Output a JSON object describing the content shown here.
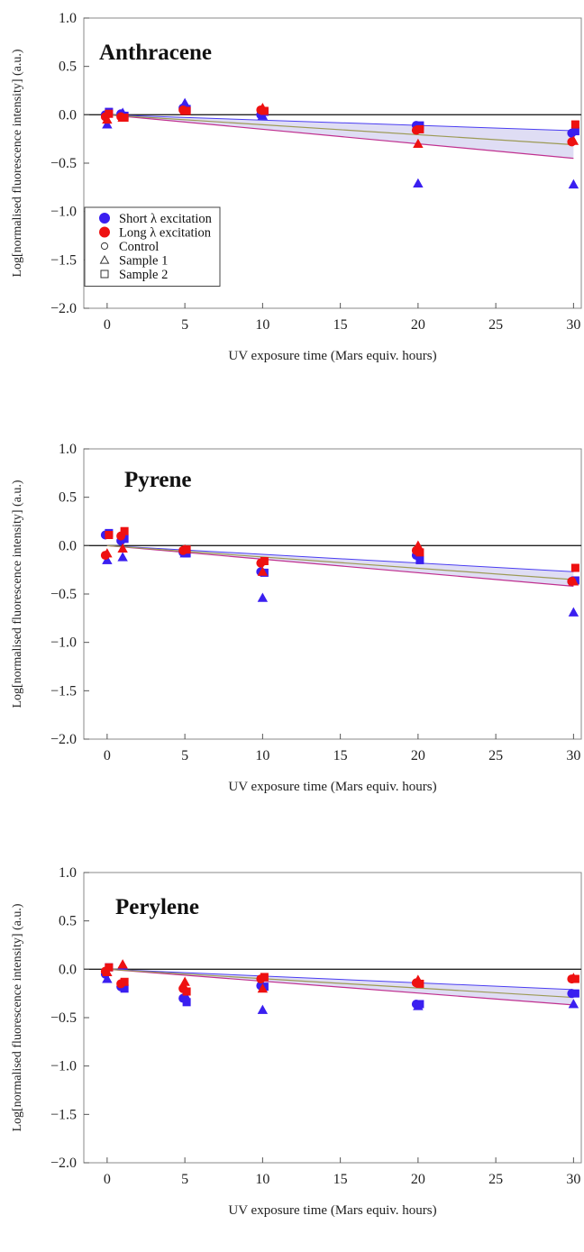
{
  "chart_data": [
    {
      "type": "scatter",
      "title": "Anthracene",
      "xlabel": "UV exposure time (Mars equiv. hours)",
      "ylabel": "Log[normalised fluorescence intensity] (a.u.)",
      "xlim": [
        -1.5,
        30.5
      ],
      "ylim": [
        -2.0,
        1.0
      ],
      "xticks": [
        0,
        5,
        10,
        15,
        20,
        25,
        30
      ],
      "yticks": [
        1.0,
        0.5,
        0.0,
        -0.5,
        -1.0,
        -1.5,
        -2.0
      ],
      "grid": false,
      "legend_position": "center-left",
      "legend": [
        {
          "label": "Short λ excitation",
          "symbol": "filled-circle",
          "color": "#3a1ff0"
        },
        {
          "label": "Long λ excitation",
          "symbol": "filled-circle",
          "color": "#ee1111"
        },
        {
          "label": "Control",
          "symbol": "open-circle",
          "color": "#333333"
        },
        {
          "label": "Sample 1",
          "symbol": "open-triangle",
          "color": "#333333"
        },
        {
          "label": "Sample 2",
          "symbol": "open-square",
          "color": "#333333"
        }
      ],
      "fit": {
        "slope": -0.0103,
        "band_upper": -0.0055,
        "band_lower": -0.015
      },
      "series": [
        {
          "excitation": "short",
          "sample": "control",
          "color": "#3a1ff0",
          "marker": "circle",
          "x": [
            0,
            1,
            5,
            10,
            20,
            30
          ],
          "y": [
            0.0,
            0.01,
            0.07,
            0.0,
            -0.11,
            -0.19
          ]
        },
        {
          "excitation": "short",
          "sample": "sample1",
          "color": "#3a1ff0",
          "marker": "triangle",
          "x": [
            0,
            1,
            5,
            10,
            20,
            30
          ],
          "y": [
            -0.1,
            0.02,
            0.12,
            -0.01,
            -0.71,
            -0.72
          ]
        },
        {
          "excitation": "short",
          "sample": "sample2",
          "color": "#3a1ff0",
          "marker": "square",
          "x": [
            0,
            1,
            5,
            10,
            20,
            30
          ],
          "y": [
            0.03,
            -0.01,
            0.06,
            0.03,
            -0.11,
            -0.17
          ]
        },
        {
          "excitation": "long",
          "sample": "control",
          "color": "#ee1111",
          "marker": "circle",
          "x": [
            0,
            1,
            5,
            10,
            20,
            30
          ],
          "y": [
            -0.02,
            -0.02,
            0.05,
            0.05,
            -0.16,
            -0.28
          ]
        },
        {
          "excitation": "long",
          "sample": "sample1",
          "color": "#ee1111",
          "marker": "triangle",
          "x": [
            0,
            1,
            5,
            10,
            20,
            30
          ],
          "y": [
            -0.05,
            -0.03,
            0.04,
            0.07,
            -0.3,
            -0.27
          ]
        },
        {
          "excitation": "long",
          "sample": "sample2",
          "color": "#ee1111",
          "marker": "square",
          "x": [
            0,
            1,
            5,
            10,
            20,
            30
          ],
          "y": [
            0.01,
            -0.03,
            0.04,
            0.04,
            -0.15,
            -0.1
          ]
        }
      ]
    },
    {
      "type": "scatter",
      "title": "Pyrene",
      "xlabel": "UV exposure time (Mars equiv. hours)",
      "ylabel": "Log[normalised fluorescence intensity] (a.u.)",
      "xlim": [
        -1.5,
        30.5
      ],
      "ylim": [
        -2.0,
        1.0
      ],
      "xticks": [
        0,
        5,
        10,
        15,
        20,
        25,
        30
      ],
      "yticks": [
        1.0,
        0.5,
        0.0,
        -0.5,
        -1.0,
        -1.5,
        -2.0
      ],
      "grid": false,
      "fit": {
        "slope": -0.0117,
        "band_upper": -0.009,
        "band_lower": -0.014
      },
      "series": [
        {
          "excitation": "short",
          "sample": "control",
          "color": "#3a1ff0",
          "marker": "circle",
          "x": [
            0,
            1,
            5,
            10,
            20,
            30
          ],
          "y": [
            0.11,
            0.05,
            -0.07,
            -0.27,
            -0.1,
            -0.37
          ]
        },
        {
          "excitation": "short",
          "sample": "sample1",
          "color": "#3a1ff0",
          "marker": "triangle",
          "x": [
            0,
            1,
            5,
            10,
            20,
            30
          ],
          "y": [
            -0.15,
            -0.12,
            -0.08,
            -0.54,
            -0.02,
            -0.69
          ]
        },
        {
          "excitation": "short",
          "sample": "sample2",
          "color": "#3a1ff0",
          "marker": "square",
          "x": [
            0,
            1,
            5,
            10,
            20,
            30
          ],
          "y": [
            0.13,
            0.07,
            -0.08,
            -0.28,
            -0.15,
            -0.36
          ]
        },
        {
          "excitation": "long",
          "sample": "control",
          "color": "#ee1111",
          "marker": "circle",
          "x": [
            0,
            1,
            5,
            10,
            20,
            30
          ],
          "y": [
            -0.1,
            0.1,
            -0.05,
            -0.18,
            -0.05,
            -0.37
          ]
        },
        {
          "excitation": "long",
          "sample": "sample1",
          "color": "#ee1111",
          "marker": "triangle",
          "x": [
            0,
            1,
            5,
            10,
            20,
            30
          ],
          "y": [
            -0.08,
            -0.03,
            -0.04,
            -0.27,
            0.0,
            -0.37
          ]
        },
        {
          "excitation": "long",
          "sample": "sample2",
          "color": "#ee1111",
          "marker": "square",
          "x": [
            0,
            1,
            5,
            10,
            20,
            30
          ],
          "y": [
            0.11,
            0.15,
            -0.04,
            -0.16,
            -0.07,
            -0.23
          ]
        }
      ]
    },
    {
      "type": "scatter",
      "title": "Perylene",
      "xlabel": "UV exposure time (Mars equiv. hours)",
      "ylabel": "Log[normalised fluorescence intensity] (a.u.)",
      "xlim": [
        -1.5,
        30.5
      ],
      "ylim": [
        -2.0,
        1.0
      ],
      "xticks": [
        0,
        5,
        10,
        15,
        20,
        25,
        30
      ],
      "yticks": [
        1.0,
        0.5,
        0.0,
        -0.5,
        -1.0,
        -1.5,
        -2.0
      ],
      "grid": false,
      "fit": {
        "slope": -0.0097,
        "band_upper": -0.007,
        "band_lower": -0.0123
      },
      "series": [
        {
          "excitation": "short",
          "sample": "control",
          "color": "#3a1ff0",
          "marker": "circle",
          "x": [
            0,
            1,
            5,
            10,
            20,
            30
          ],
          "y": [
            -0.05,
            -0.18,
            -0.3,
            -0.17,
            -0.36,
            -0.25
          ]
        },
        {
          "excitation": "short",
          "sample": "sample1",
          "color": "#3a1ff0",
          "marker": "triangle",
          "x": [
            0,
            1,
            5,
            10,
            20,
            30
          ],
          "y": [
            -0.1,
            0.04,
            -0.26,
            -0.42,
            -0.38,
            -0.36
          ]
        },
        {
          "excitation": "short",
          "sample": "sample2",
          "color": "#3a1ff0",
          "marker": "square",
          "x": [
            0,
            1,
            5,
            10,
            20,
            30
          ],
          "y": [
            0.02,
            -0.2,
            -0.34,
            -0.18,
            -0.36,
            -0.25
          ]
        },
        {
          "excitation": "long",
          "sample": "control",
          "color": "#ee1111",
          "marker": "circle",
          "x": [
            0,
            1,
            5,
            10,
            20,
            30
          ],
          "y": [
            -0.02,
            -0.15,
            -0.2,
            -0.1,
            -0.14,
            -0.1
          ]
        },
        {
          "excitation": "long",
          "sample": "sample1",
          "color": "#ee1111",
          "marker": "triangle",
          "x": [
            0,
            1,
            5,
            10,
            20,
            30
          ],
          "y": [
            -0.03,
            0.05,
            -0.13,
            -0.2,
            -0.11,
            -0.09
          ]
        },
        {
          "excitation": "long",
          "sample": "sample2",
          "color": "#ee1111",
          "marker": "square",
          "x": [
            0,
            1,
            5,
            10,
            20,
            30
          ],
          "y": [
            0.02,
            -0.13,
            -0.23,
            -0.08,
            -0.15,
            -0.1
          ]
        }
      ]
    }
  ]
}
